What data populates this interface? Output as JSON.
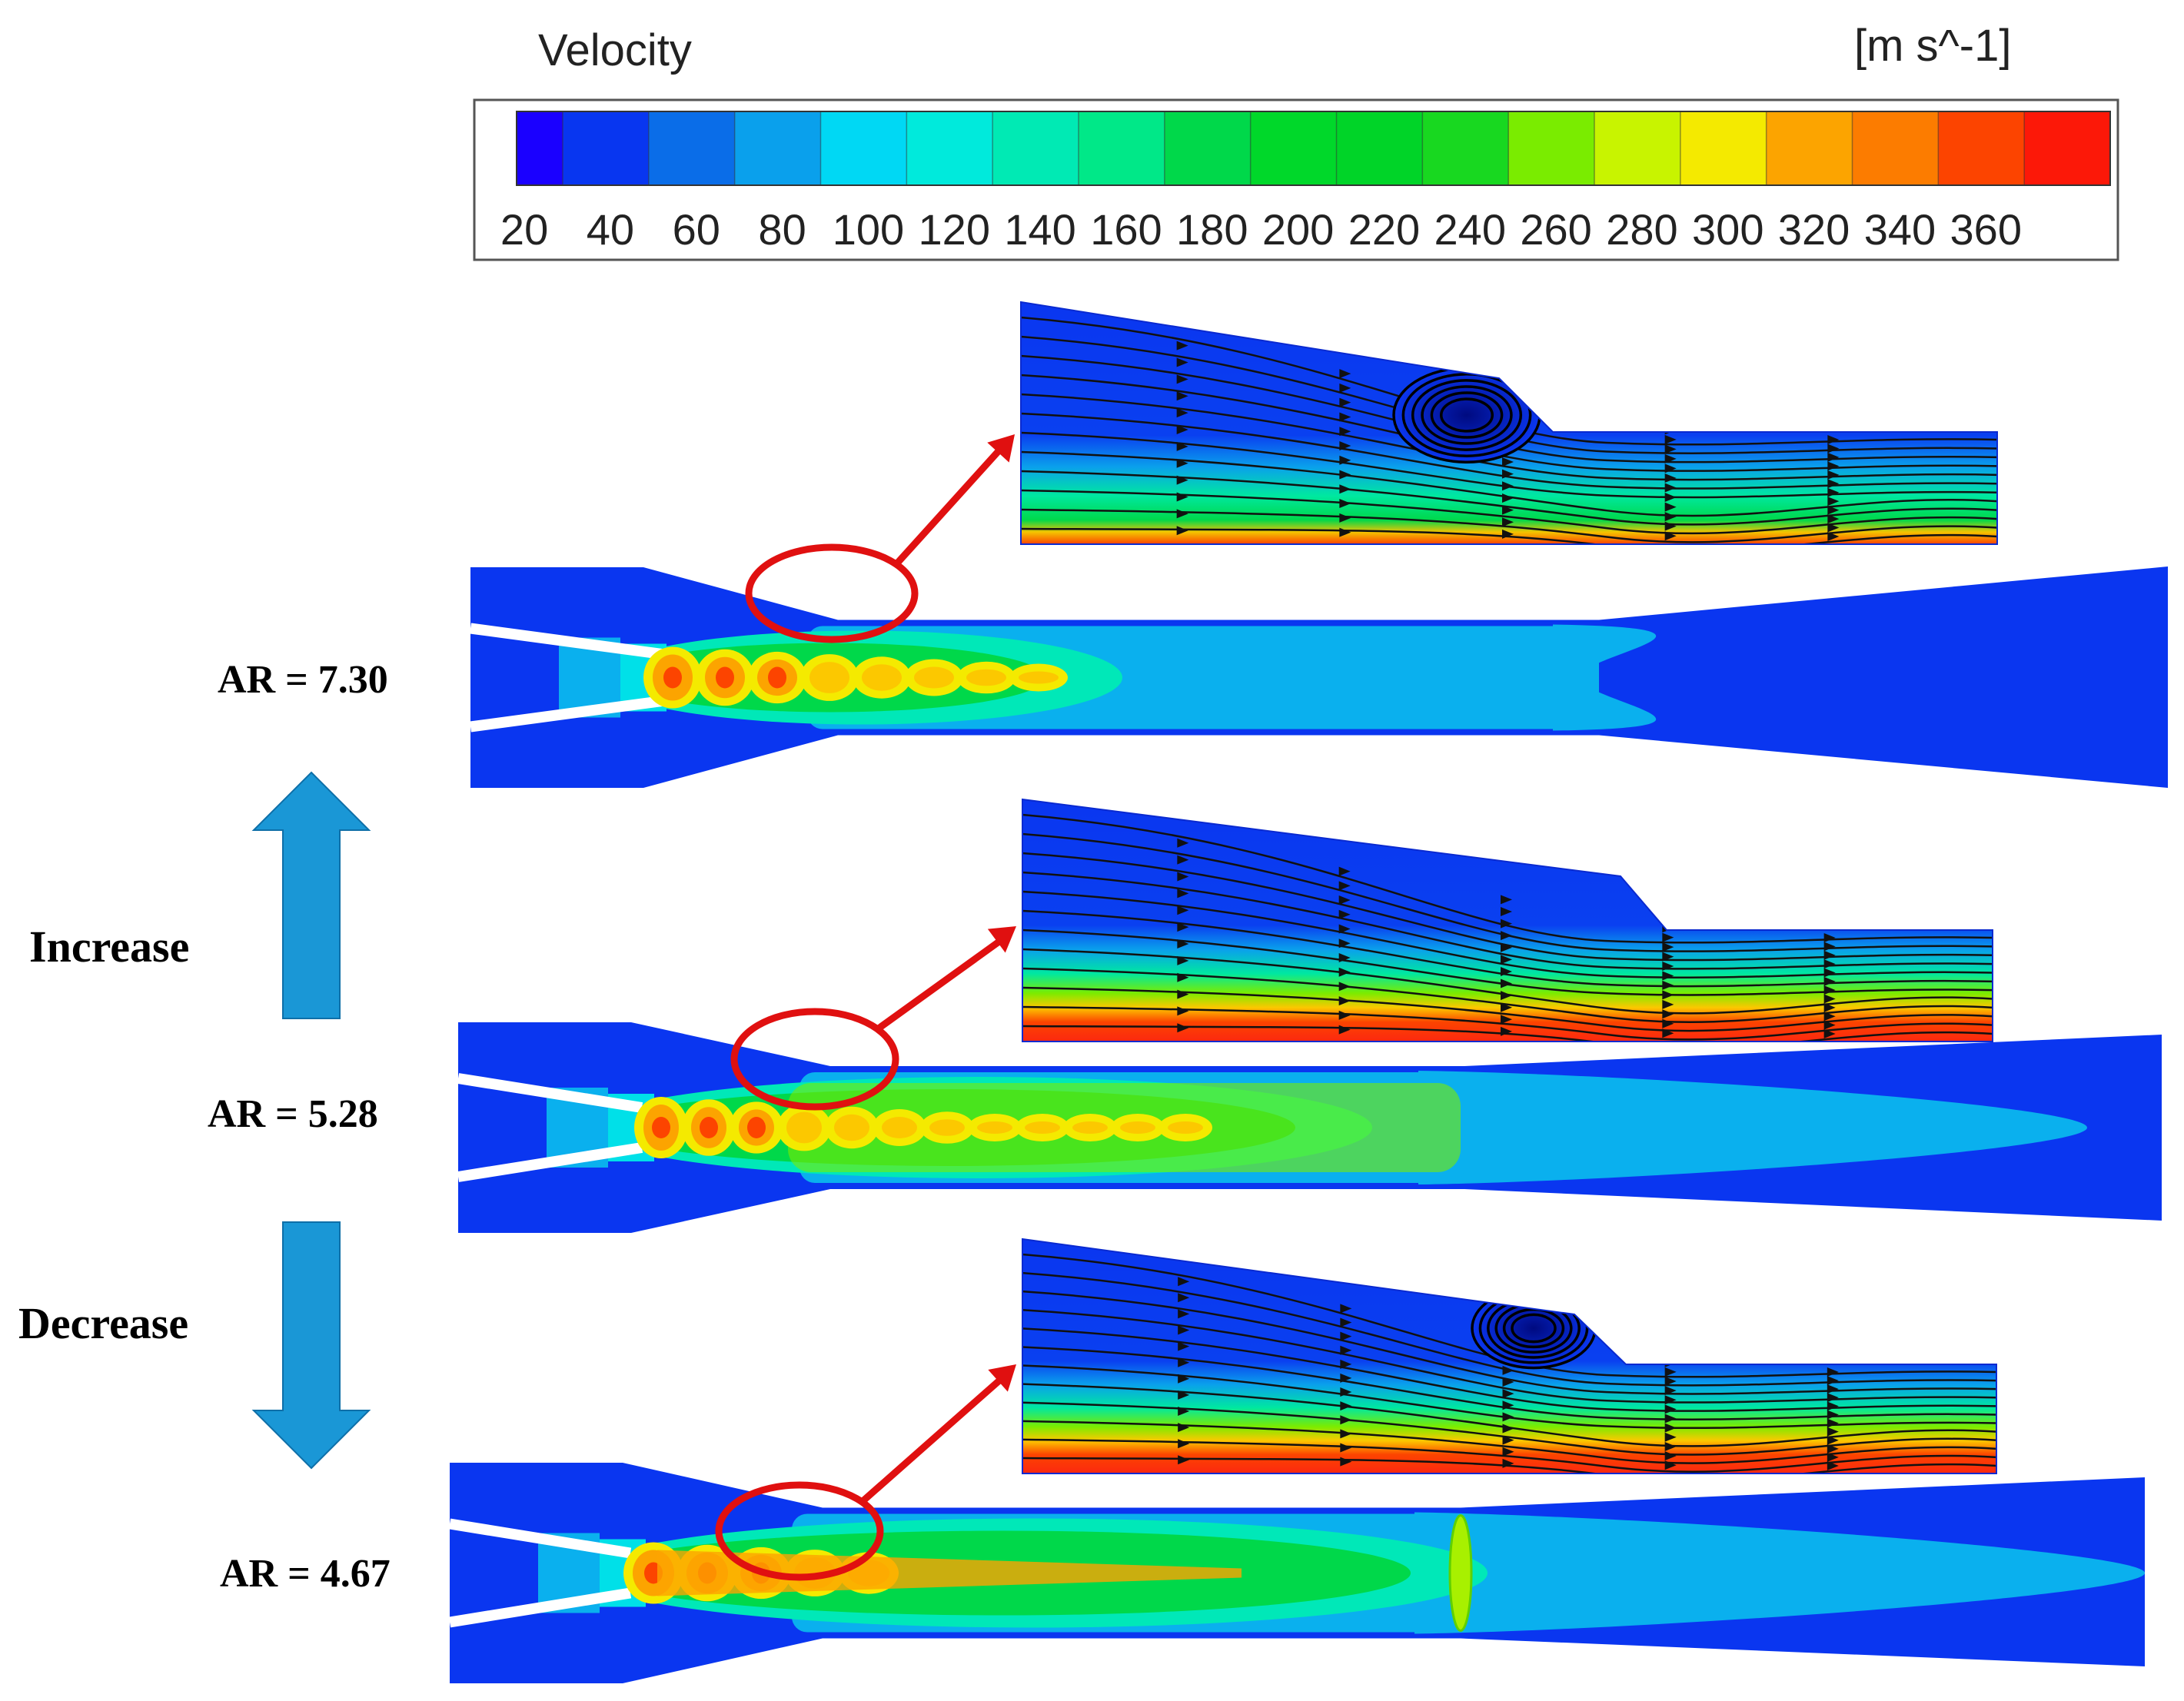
{
  "legend": {
    "title": "Velocity",
    "unit": "[m s^-1]",
    "ticks": [
      "20",
      "40",
      "60",
      "80",
      "100",
      "120",
      "140",
      "160",
      "180",
      "200",
      "220",
      "240",
      "260",
      "280",
      "300",
      "320",
      "340",
      "360"
    ],
    "colors": [
      "#1a00ff",
      "#0836f0",
      "#0a6de8",
      "#0aa0ec",
      "#00d8f4",
      "#00eadc",
      "#00eab4",
      "#00e888",
      "#00d84a",
      "#00d82a",
      "#00d428",
      "#18d820",
      "#7aec00",
      "#c8f400",
      "#f4ea00",
      "#fca400",
      "#fc7c00",
      "#fc4400",
      "#fc1808"
    ]
  },
  "cases": [
    {
      "label": "AR = 7.30",
      "vortex": true
    },
    {
      "label": "AR = 5.28",
      "vortex": false
    },
    {
      "label": "AR = 4.67",
      "vortex": true
    }
  ],
  "arrows": {
    "up_label": "Increase",
    "down_label": "Decrease"
  },
  "colors": {
    "arrow_blue": "#1a97d6",
    "callout_red": "#e01010",
    "background_blue": "#0a36f0"
  }
}
